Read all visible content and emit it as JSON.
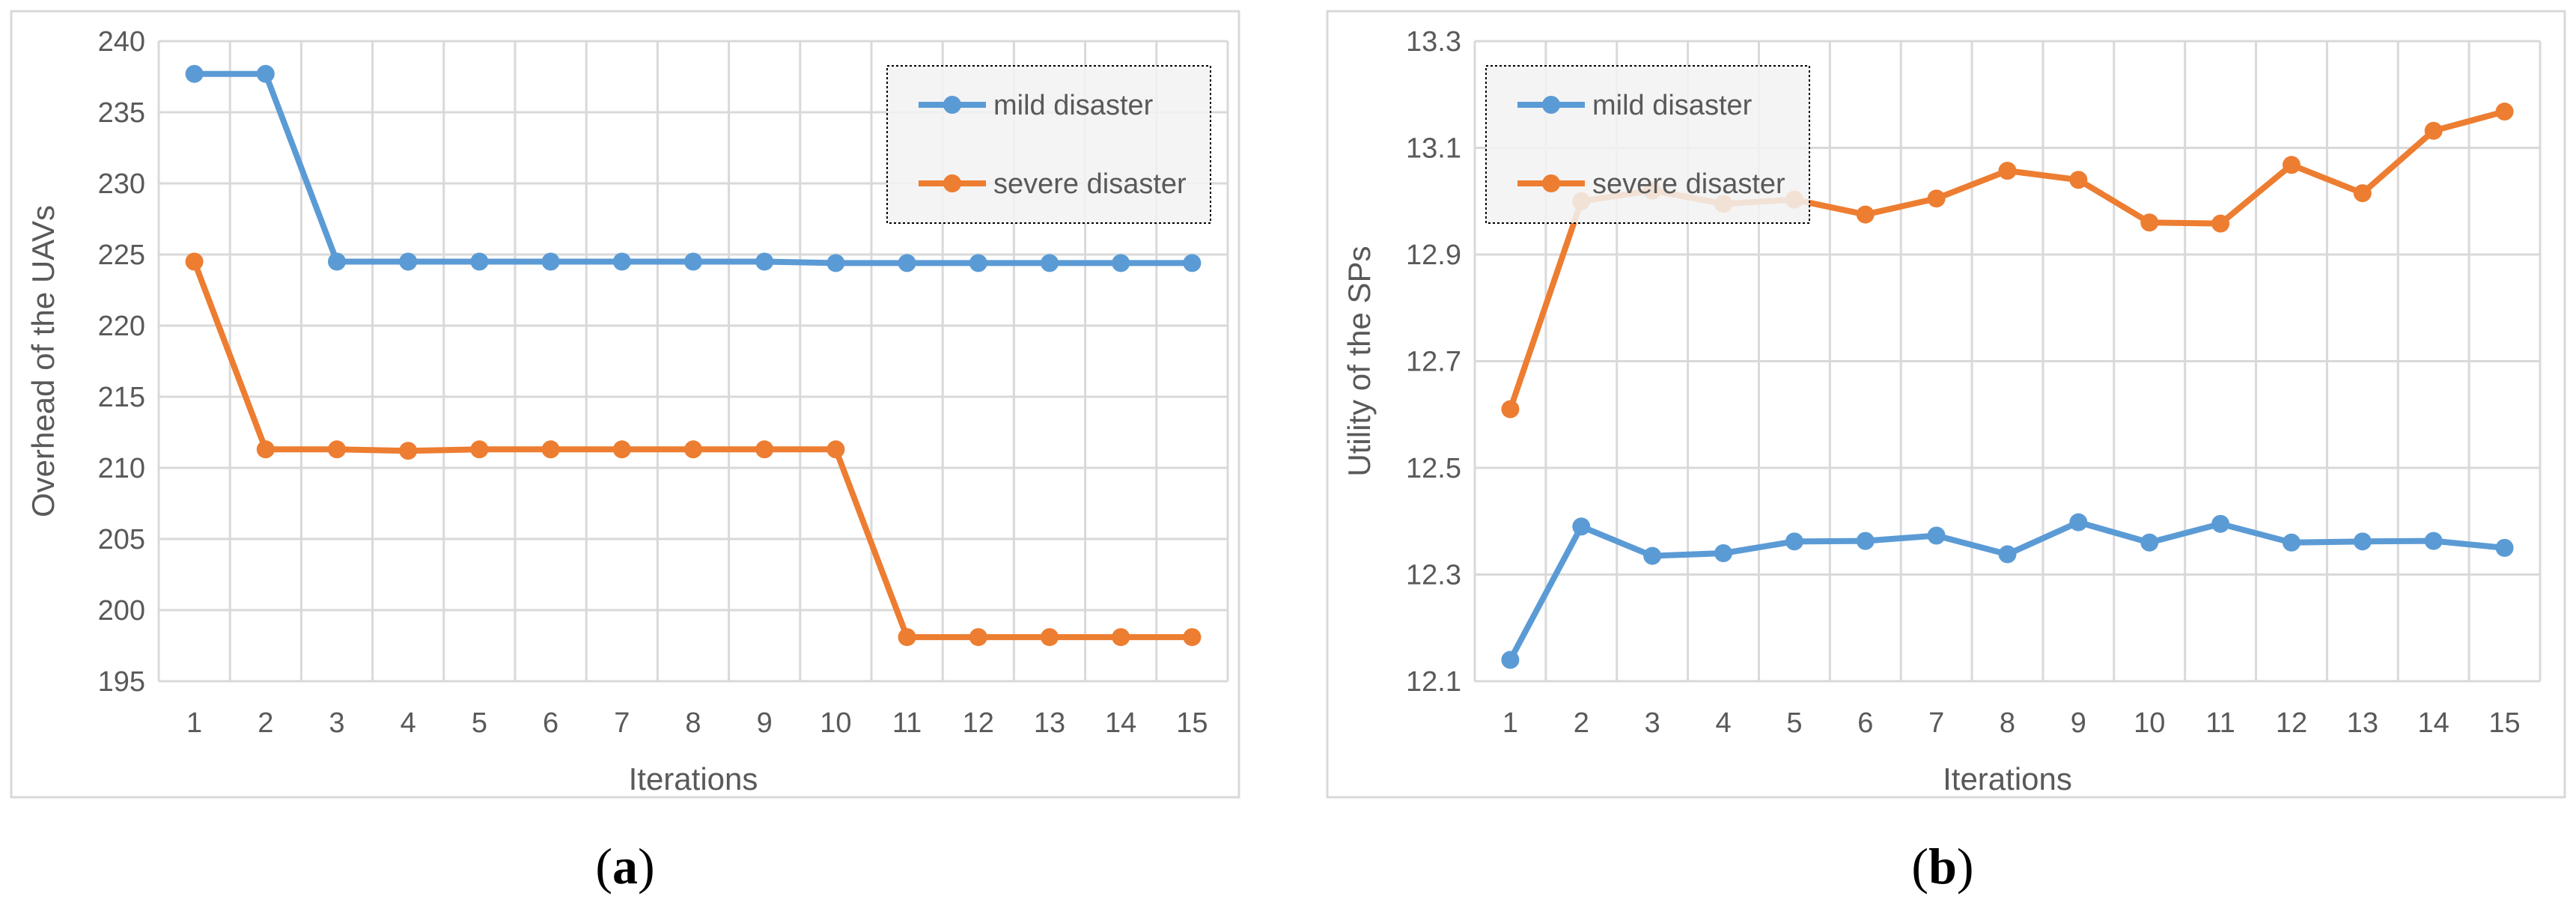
{
  "colors": {
    "mild": "#5b9bd5",
    "severe": "#ed7d31",
    "grid": "#d9d9d9",
    "frame": "#d9d9d9",
    "text": "#595959"
  },
  "chart_data": [
    {
      "type": "line",
      "title": "",
      "xlabel": "Iterations",
      "ylabel": "Overhead of the UAVs",
      "x": [
        1,
        2,
        3,
        4,
        5,
        6,
        7,
        8,
        9,
        10,
        11,
        12,
        13,
        14,
        15
      ],
      "ylim": [
        195,
        240
      ],
      "yticks": [
        "195",
        "200",
        "205",
        "210",
        "215",
        "220",
        "225",
        "230",
        "235",
        "240"
      ],
      "xticks": [
        "1",
        "2",
        "3",
        "4",
        "5",
        "6",
        "7",
        "8",
        "9",
        "10",
        "11",
        "12",
        "13",
        "14",
        "15"
      ],
      "series": [
        {
          "name": "mild disaster",
          "color": "#5b9bd5",
          "values": [
            237.7,
            237.7,
            224.5,
            224.5,
            224.5,
            224.5,
            224.5,
            224.5,
            224.5,
            224.4,
            224.4,
            224.4,
            224.4,
            224.4,
            224.4
          ]
        },
        {
          "name": "severe disaster",
          "color": "#ed7d31",
          "values": [
            224.5,
            211.3,
            211.3,
            211.2,
            211.3,
            211.3,
            211.3,
            211.3,
            211.3,
            211.3,
            198.1,
            198.1,
            198.1,
            198.1,
            198.1
          ]
        }
      ],
      "legend": "top-right",
      "caption_letter": "a"
    },
    {
      "type": "line",
      "title": "",
      "xlabel": "Iterations",
      "ylabel": "Utility of the SPs",
      "x": [
        1,
        2,
        3,
        4,
        5,
        6,
        7,
        8,
        9,
        10,
        11,
        12,
        13,
        14,
        15
      ],
      "ylim": [
        12.1,
        13.3
      ],
      "yticks": [
        "12.1",
        "12.3",
        "12.5",
        "12.7",
        "12.9",
        "13.1",
        "13.3"
      ],
      "xticks": [
        "1",
        "2",
        "3",
        "4",
        "5",
        "6",
        "7",
        "8",
        "9",
        "10",
        "11",
        "12",
        "13",
        "14",
        "15"
      ],
      "series": [
        {
          "name": "mild disaster",
          "color": "#5b9bd5",
          "values": [
            12.14,
            12.39,
            12.335,
            12.34,
            12.362,
            12.363,
            12.373,
            12.338,
            12.398,
            12.36,
            12.395,
            12.36,
            12.362,
            12.363,
            12.35
          ]
        },
        {
          "name": "severe disaster",
          "color": "#ed7d31",
          "values": [
            12.61,
            13.0,
            13.02,
            12.995,
            13.003,
            12.975,
            13.005,
            13.057,
            13.04,
            12.96,
            12.958,
            13.068,
            13.015,
            13.132,
            13.168
          ]
        }
      ],
      "legend": "top-left",
      "caption_letter": "b"
    }
  ]
}
